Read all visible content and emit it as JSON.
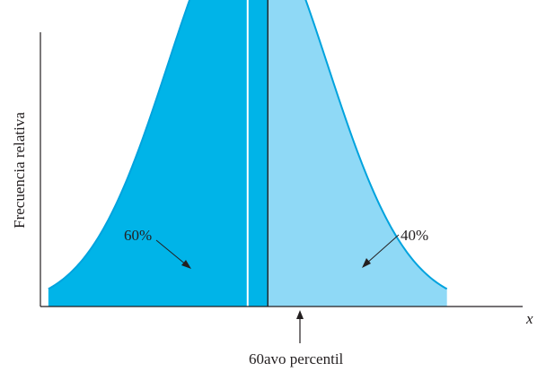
{
  "chart_data": {
    "type": "area",
    "distribution": "normal",
    "title": "",
    "xlabel": "x",
    "ylabel": "Frecuencia relativa",
    "xlim": [
      -2.6,
      3.45
    ],
    "ylim": [
      0,
      1.72
    ],
    "mean": 0,
    "sd": 1,
    "percentile_z": 0.253,
    "regions": [
      {
        "label": "60%",
        "share": 0.6,
        "color": "#00b4e8"
      },
      {
        "label": "40%",
        "share": 0.4,
        "color": "#8fd9f6"
      }
    ],
    "curve_color": "#00a3de",
    "annotations": {
      "percentile_label": "60avo percentil"
    }
  }
}
